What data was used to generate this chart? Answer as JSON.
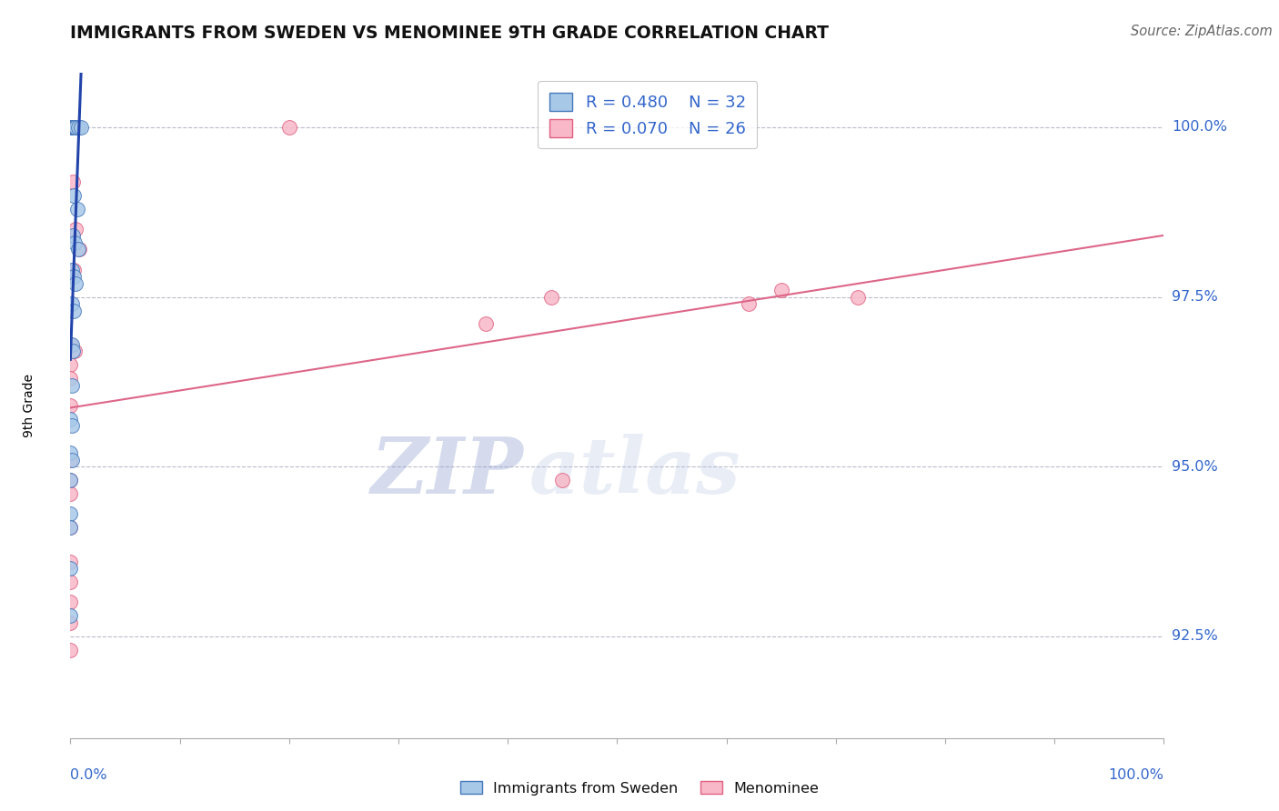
{
  "title": "IMMIGRANTS FROM SWEDEN VS MENOMINEE 9TH GRADE CORRELATION CHART",
  "source": "Source: ZipAtlas.com",
  "ylabel": "9th Grade",
  "ylabel_right_labels": [
    "100.0%",
    "97.5%",
    "95.0%",
    "92.5%"
  ],
  "ylabel_right_values": [
    1.0,
    0.975,
    0.95,
    0.925
  ],
  "xlim": [
    0.0,
    1.0
  ],
  "ylim": [
    0.91,
    1.008
  ],
  "legend_R1": "R = 0.480",
  "legend_N1": "N = 32",
  "legend_R2": "R = 0.070",
  "legend_N2": "N = 26",
  "blue_fill": "#A8C8E8",
  "blue_edge": "#4477BB",
  "pink_fill": "#F8B8C8",
  "pink_edge": "#E06080",
  "blue_line_color": "#2244AA",
  "pink_line_color": "#DD6688",
  "blue_scatter": [
    [
      0.0,
      1.0
    ],
    [
      0.0,
      1.0
    ],
    [
      0.0,
      1.0
    ],
    [
      0.0,
      1.0
    ],
    [
      0.002,
      1.0
    ],
    [
      0.003,
      1.0
    ],
    [
      0.004,
      1.0
    ],
    [
      0.005,
      1.0
    ],
    [
      0.007,
      1.0
    ],
    [
      0.01,
      1.0
    ],
    [
      0.003,
      0.99
    ],
    [
      0.006,
      0.988
    ],
    [
      0.002,
      0.984
    ],
    [
      0.004,
      0.983
    ],
    [
      0.007,
      0.982
    ],
    [
      0.001,
      0.979
    ],
    [
      0.003,
      0.978
    ],
    [
      0.005,
      0.977
    ],
    [
      0.001,
      0.974
    ],
    [
      0.003,
      0.973
    ],
    [
      0.001,
      0.968
    ],
    [
      0.002,
      0.967
    ],
    [
      0.001,
      0.962
    ],
    [
      0.0,
      0.957
    ],
    [
      0.001,
      0.956
    ],
    [
      0.0,
      0.952
    ],
    [
      0.001,
      0.951
    ],
    [
      0.0,
      0.948
    ],
    [
      0.0,
      0.943
    ],
    [
      0.0,
      0.941
    ],
    [
      0.0,
      0.935
    ],
    [
      0.0,
      0.928
    ]
  ],
  "pink_scatter": [
    [
      0.002,
      1.0
    ],
    [
      0.2,
      1.0
    ],
    [
      0.002,
      0.992
    ],
    [
      0.005,
      0.985
    ],
    [
      0.008,
      0.982
    ],
    [
      0.003,
      0.979
    ],
    [
      0.44,
      0.975
    ],
    [
      0.62,
      0.974
    ],
    [
      0.38,
      0.971
    ],
    [
      0.0,
      0.968
    ],
    [
      0.004,
      0.967
    ],
    [
      0.0,
      0.965
    ],
    [
      0.0,
      0.963
    ],
    [
      0.0,
      0.959
    ],
    [
      0.65,
      0.976
    ],
    [
      0.72,
      0.975
    ],
    [
      0.0,
      0.951
    ],
    [
      0.0,
      0.948
    ],
    [
      0.0,
      0.946
    ],
    [
      0.45,
      0.948
    ],
    [
      0.0,
      0.941
    ],
    [
      0.0,
      0.936
    ],
    [
      0.0,
      0.933
    ],
    [
      0.0,
      0.93
    ],
    [
      0.0,
      0.927
    ],
    [
      0.0,
      0.923
    ]
  ],
  "watermark_zip": "ZIP",
  "watermark_atlas": "atlas",
  "background_color": "#FFFFFF",
  "grid_color": "#BBBBCC"
}
